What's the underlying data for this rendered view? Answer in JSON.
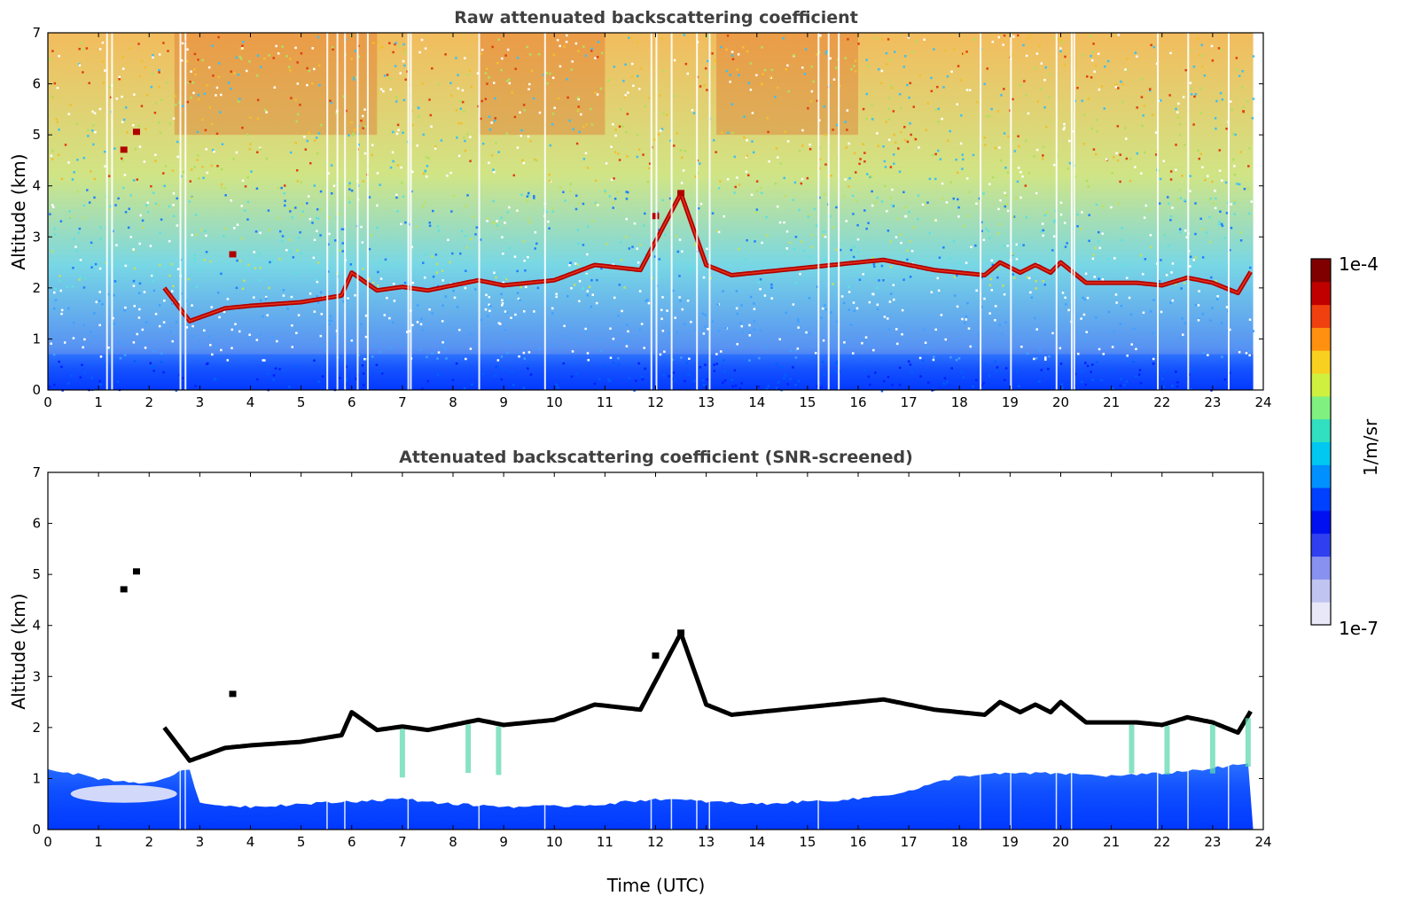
{
  "chart_data": [
    {
      "type": "heatmap",
      "title": "Raw attenuated backscattering coefficient",
      "xlabel": "",
      "ylabel": "Altitude (km)",
      "xlim": [
        0,
        24
      ],
      "ylim": [
        0,
        7
      ],
      "xticks": [
        0,
        1,
        2,
        3,
        4,
        5,
        6,
        7,
        8,
        9,
        10,
        11,
        12,
        13,
        14,
        15,
        16,
        17,
        18,
        19,
        20,
        21,
        22,
        23,
        24
      ],
      "yticks": [
        0,
        1,
        2,
        3,
        4,
        5,
        6,
        7
      ],
      "grid": false,
      "screened": false,
      "cloud_layer_altitude_km": {
        "time_utc": [
          2.3,
          2.8,
          3.5,
          4.0,
          5.0,
          5.8,
          6.0,
          6.5,
          7.0,
          7.5,
          8.0,
          8.5,
          9.0,
          10.0,
          10.8,
          11.7,
          12.5,
          13.0,
          13.5,
          14.5,
          15.5,
          16.5,
          17.5,
          18.5,
          18.8,
          19.2,
          19.5,
          19.8,
          20.0,
          20.5,
          21.5,
          22.0,
          22.5,
          23.0,
          23.5,
          23.8
        ],
        "altitude_km": [
          2.0,
          1.35,
          1.6,
          1.65,
          1.72,
          1.85,
          2.3,
          1.95,
          2.02,
          1.95,
          2.05,
          2.15,
          2.05,
          2.15,
          2.45,
          2.35,
          3.85,
          2.45,
          2.25,
          2.35,
          2.45,
          2.55,
          2.35,
          2.25,
          2.5,
          2.3,
          2.45,
          2.3,
          2.5,
          2.1,
          2.1,
          2.05,
          2.2,
          2.1,
          1.9,
          2.4
        ]
      },
      "isolated_features_km": [
        {
          "time_utc": 1.5,
          "altitude_km": 4.7
        },
        {
          "time_utc": 1.75,
          "altitude_km": 5.05
        },
        {
          "time_utc": 3.65,
          "altitude_km": 2.65
        },
        {
          "time_utc": 12.0,
          "altitude_km": 3.4
        },
        {
          "time_utc": 12.5,
          "altitude_km": 3.85
        }
      ]
    },
    {
      "type": "heatmap",
      "title": "Attenuated backscattering coefficient (SNR-screened)",
      "xlabel": "Time (UTC)",
      "ylabel": "Altitude (km)",
      "xlim": [
        0,
        24
      ],
      "ylim": [
        0,
        7
      ],
      "xticks": [
        0,
        1,
        2,
        3,
        4,
        5,
        6,
        7,
        8,
        9,
        10,
        11,
        12,
        13,
        14,
        15,
        16,
        17,
        18,
        19,
        20,
        21,
        22,
        23,
        24
      ],
      "yticks": [
        0,
        1,
        2,
        3,
        4,
        5,
        6,
        7
      ],
      "grid": false,
      "screened": true,
      "boundary_layer_top_km": {
        "time_utc": [
          0,
          1,
          2,
          2.8,
          3,
          4,
          5,
          6,
          7,
          8,
          9,
          10,
          11,
          12,
          13,
          14,
          15,
          16,
          17,
          18,
          19,
          20,
          21,
          22,
          23,
          23.8
        ],
        "altitude_km": [
          1.2,
          1.0,
          0.9,
          1.2,
          0.5,
          0.45,
          0.5,
          0.55,
          0.6,
          0.5,
          0.45,
          0.45,
          0.5,
          0.6,
          0.55,
          0.5,
          0.55,
          0.6,
          0.75,
          1.05,
          1.1,
          1.1,
          1.05,
          1.1,
          1.2,
          1.3
        ]
      }
    }
  ],
  "colorbar": {
    "label": "1/m/sr",
    "max_label": "1e-4",
    "min_label": "1e-7",
    "colors": [
      "#e8e8f8",
      "#c0c4f0",
      "#8890f0",
      "#3040f0",
      "#0010f0",
      "#0040ff",
      "#0090ff",
      "#00c8f0",
      "#30e0c0",
      "#80f080",
      "#d0f040",
      "#f8d020",
      "#ff9010",
      "#f04010",
      "#c00000",
      "#800000"
    ]
  }
}
